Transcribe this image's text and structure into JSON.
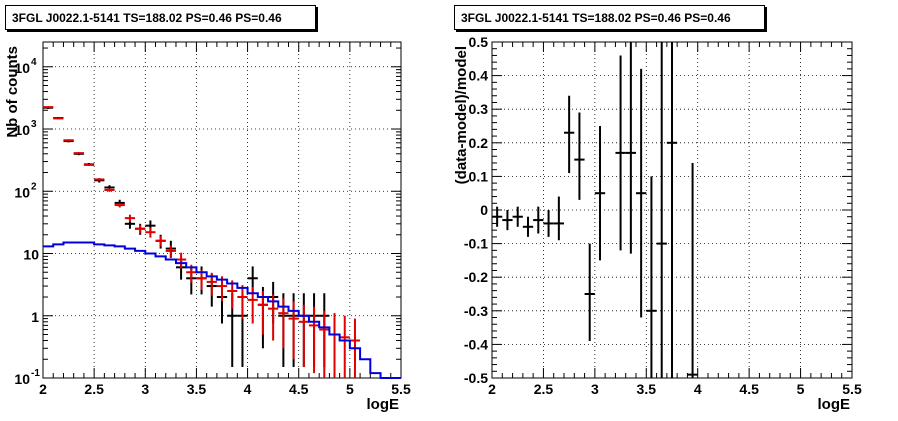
{
  "chart_data": [
    {
      "type": "scatter",
      "title": "3FGL J0022.1-5141 TS=188.02 PS=0.46 PS=0.46",
      "xlabel": "logE",
      "ylabel": "Nb of counts",
      "xlim": [
        2,
        5.5
      ],
      "ylim": [
        0.1,
        25000
      ],
      "ylog": true,
      "grid": true,
      "x_ticks": [
        "2",
        "2.5",
        "3",
        "3.5",
        "4",
        "4.5",
        "5",
        "5.5"
      ],
      "y_ticks": [
        {
          "base": "10",
          "exp": "-1"
        },
        {
          "base": "1",
          "exp": ""
        },
        {
          "base": "10",
          "exp": ""
        },
        {
          "base": "10",
          "exp": "2"
        },
        {
          "base": "10",
          "exp": "3"
        },
        {
          "base": "10",
          "exp": "4"
        }
      ],
      "series": [
        {
          "color": "#000000",
          "style": "errorbar",
          "x": [
            2.05,
            2.15,
            2.25,
            2.35,
            2.45,
            2.55,
            2.65,
            2.75,
            2.85,
            2.95,
            3.05,
            3.15,
            3.25,
            3.35,
            3.45,
            3.55,
            3.65,
            3.75,
            3.85,
            3.95,
            4.05,
            4.15,
            4.25,
            4.35,
            4.45,
            4.55,
            4.65,
            4.75
          ],
          "y": [
            2200,
            1500,
            640,
            400,
            270,
            150,
            115,
            65,
            30,
            25,
            28,
            16,
            12,
            6,
            4,
            4,
            3,
            2,
            1,
            1,
            4,
            1.5,
            2,
            1,
            1,
            1,
            1,
            1
          ],
          "ylow": [
            2100,
            1440,
            610,
            380,
            255,
            138,
            105,
            57,
            25,
            20,
            23,
            12,
            8.5,
            3.8,
            2.2,
            2.2,
            1.4,
            0.75,
            0.15,
            0.15,
            2.2,
            0.3,
            0.75,
            0.15,
            0.15,
            0.15,
            0.15,
            0.15
          ],
          "yhigh": [
            2300,
            1560,
            670,
            420,
            285,
            162,
            125,
            73,
            36,
            30,
            34,
            20,
            16,
            8.5,
            6.2,
            6.2,
            4.7,
            3.5,
            2.3,
            2.3,
            6.2,
            2.9,
            3.5,
            2.3,
            2.3,
            2.3,
            2.3,
            2.3
          ]
        },
        {
          "color": "#e00000",
          "style": "errorbar",
          "x": [
            2.05,
            2.15,
            2.25,
            2.35,
            2.45,
            2.55,
            2.65,
            2.75,
            2.85,
            2.95,
            3.05,
            3.15,
            3.25,
            3.35,
            3.45,
            3.55,
            3.65,
            3.75,
            3.85,
            3.95,
            4.05,
            4.15,
            4.25,
            4.35,
            4.45,
            4.55,
            4.65,
            4.75,
            4.85,
            4.95,
            5.05
          ],
          "y": [
            2250,
            1480,
            660,
            410,
            265,
            155,
            105,
            60,
            37,
            25,
            22,
            16,
            11,
            8,
            5,
            4,
            3.5,
            3,
            2.5,
            2,
            1.8,
            1.5,
            1.3,
            1.1,
            0.9,
            0.8,
            0.7,
            0.6,
            0.5,
            0.45,
            0.4
          ],
          "ylow": [
            2200,
            1440,
            640,
            395,
            255,
            148,
            98,
            55,
            32,
            21,
            18,
            13,
            8.5,
            5.8,
            3.4,
            2.6,
            2.1,
            1.7,
            1.3,
            0.9,
            0.75,
            0.5,
            0.4,
            0.3,
            0.2,
            0.15,
            0.12,
            0.1,
            0.1,
            0.1,
            0.1
          ],
          "yhigh": [
            2300,
            1520,
            680,
            425,
            275,
            162,
            112,
            65,
            42,
            29,
            26,
            19,
            13.5,
            10.3,
            6.6,
            5.4,
            4.9,
            4.3,
            3.7,
            3.1,
            2.9,
            2.5,
            2.2,
            1.9,
            1.7,
            1.5,
            1.4,
            1.2,
            1.1,
            1.0,
            0.9
          ]
        },
        {
          "color": "#0000dd",
          "style": "step",
          "x": [
            2.0,
            2.1,
            2.2,
            2.3,
            2.4,
            2.5,
            2.6,
            2.7,
            2.8,
            2.9,
            3.0,
            3.1,
            3.2,
            3.3,
            3.4,
            3.5,
            3.6,
            3.7,
            3.8,
            3.9,
            4.0,
            4.1,
            4.2,
            4.3,
            4.4,
            4.5,
            4.6,
            4.7,
            4.8,
            4.9,
            5.0,
            5.1,
            5.2,
            5.3,
            5.4
          ],
          "y": [
            13,
            14,
            15,
            15,
            15,
            14,
            13.5,
            13,
            12,
            11,
            10,
            9,
            8,
            7,
            6,
            5,
            4.3,
            3.8,
            3.3,
            2.8,
            2.3,
            2.0,
            1.7,
            1.4,
            1.2,
            1.0,
            0.8,
            0.65,
            0.5,
            0.4,
            0.3,
            0.2,
            0.12,
            0.1,
            0.1
          ]
        }
      ]
    },
    {
      "type": "scatter",
      "title": "3FGL J0022.1-5141 TS=188.02 PS=0.46 PS=0.46",
      "xlabel": "logE",
      "ylabel": "(data-model)/model",
      "xlim": [
        2,
        5.5
      ],
      "ylim": [
        -0.5,
        0.5
      ],
      "grid": true,
      "x_ticks": [
        "2",
        "2.5",
        "3",
        "3.5",
        "4",
        "4.5",
        "5",
        "5.5"
      ],
      "y_ticks": [
        "-0.5",
        "-0.4",
        "-0.3",
        "-0.2",
        "-0.1",
        "0",
        "0.1",
        "0.2",
        "0.3",
        "0.4",
        "0.5"
      ],
      "series": [
        {
          "color": "#000000",
          "style": "errorbar",
          "x": [
            2.05,
            2.15,
            2.25,
            2.35,
            2.45,
            2.55,
            2.65,
            2.75,
            2.85,
            2.95,
            3.05,
            3.25,
            3.35,
            3.45,
            3.55,
            3.65,
            3.75,
            3.95
          ],
          "y": [
            -0.02,
            -0.03,
            -0.02,
            -0.05,
            -0.03,
            -0.04,
            -0.04,
            0.23,
            0.15,
            -0.25,
            0.05,
            0.17,
            0.17,
            0.05,
            -0.3,
            -0.1,
            0.2,
            -0.49
          ],
          "ylow": [
            -0.05,
            -0.06,
            -0.05,
            -0.08,
            -0.07,
            -0.08,
            -0.09,
            0.11,
            0.03,
            -0.39,
            -0.15,
            -0.12,
            -0.13,
            -0.32,
            -0.5,
            -0.5,
            -0.5,
            -0.5
          ],
          "yhigh": [
            0.01,
            0.0,
            0.01,
            -0.02,
            0.01,
            0.0,
            0.04,
            0.34,
            0.29,
            -0.1,
            0.25,
            0.46,
            0.5,
            0.42,
            0.1,
            0.5,
            0.5,
            0.14
          ]
        }
      ]
    }
  ]
}
